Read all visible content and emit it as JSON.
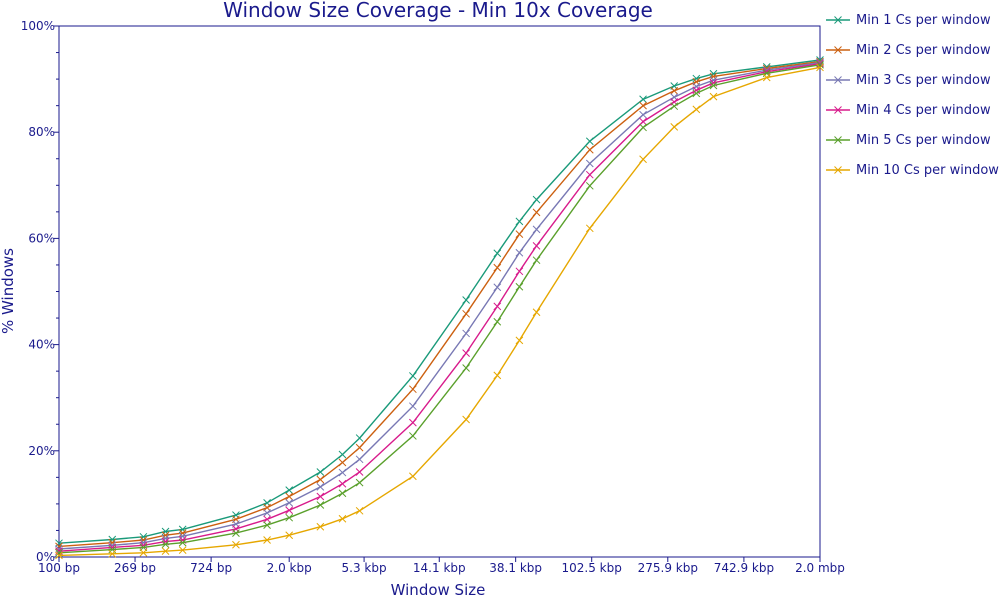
{
  "chart_data": {
    "type": "line",
    "title": "Window Size Coverage - Min 10x Coverage",
    "xlabel": "Window Size",
    "ylabel": "% Windows",
    "x_scale": "log",
    "x_ticks": [
      {
        "value": 100,
        "label": "100 bp"
      },
      {
        "value": 269,
        "label": "269 bp"
      },
      {
        "value": 724,
        "label": "724 bp"
      },
      {
        "value": 2000,
        "label": "2.0 kbp"
      },
      {
        "value": 5300,
        "label": "5.3 kbp"
      },
      {
        "value": 14100,
        "label": "14.1 kbp"
      },
      {
        "value": 38100,
        "label": "38.1 kbp"
      },
      {
        "value": 102500,
        "label": "102.5 kbp"
      },
      {
        "value": 275900,
        "label": "275.9 kbp"
      },
      {
        "value": 742900,
        "label": "742.9 kbp"
      },
      {
        "value": 2000000,
        "label": "2.0 mbp"
      }
    ],
    "y_ticks": [
      {
        "value": 0,
        "label": "0%"
      },
      {
        "value": 20,
        "label": "20%"
      },
      {
        "value": 40,
        "label": "40%"
      },
      {
        "value": 60,
        "label": "60%"
      },
      {
        "value": 80,
        "label": "80%"
      },
      {
        "value": 100,
        "label": "100%"
      }
    ],
    "ylim": [
      0,
      100
    ],
    "xlim": [
      100,
      2000000
    ],
    "grid": false,
    "legend_position": "right",
    "x": [
      100,
      200,
      300,
      400,
      500,
      1000,
      1500,
      2000,
      3000,
      4000,
      5000,
      10000,
      20000,
      30000,
      40000,
      50000,
      100000,
      200000,
      300000,
      400000,
      500000,
      1000000,
      2000000
    ],
    "series": [
      {
        "name": "Min 1 Cs per window",
        "color": "#1a9a7a",
        "values": [
          2.6,
          3.3,
          3.8,
          4.8,
          5.2,
          7.9,
          10.2,
          12.6,
          16.0,
          19.3,
          22.4,
          34.1,
          48.4,
          57.2,
          63.2,
          67.3,
          78.3,
          86.2,
          88.7,
          90.1,
          91.0,
          92.3,
          93.6
        ]
      },
      {
        "name": "Min 2 Cs per window",
        "color": "#cc6010",
        "values": [
          2.0,
          2.7,
          3.2,
          4.1,
          4.5,
          7.1,
          9.3,
          11.4,
          14.6,
          17.8,
          20.6,
          31.6,
          45.8,
          54.5,
          60.8,
          64.9,
          76.7,
          85.0,
          87.8,
          89.5,
          90.5,
          92.0,
          93.3
        ]
      },
      {
        "name": "Min 3 Cs per window",
        "color": "#7878b4",
        "values": [
          1.5,
          2.2,
          2.7,
          3.5,
          3.9,
          6.2,
          8.3,
          10.2,
          13.2,
          15.9,
          18.4,
          28.4,
          42.1,
          50.8,
          57.3,
          61.7,
          74.1,
          83.3,
          86.6,
          88.6,
          89.8,
          91.7,
          93.1
        ]
      },
      {
        "name": "Min 4 Cs per window",
        "color": "#d81b8c",
        "values": [
          1.1,
          1.8,
          2.2,
          2.9,
          3.2,
          5.3,
          7.1,
          8.8,
          11.4,
          13.8,
          16.0,
          25.3,
          38.4,
          47.2,
          53.8,
          58.6,
          72.0,
          82.0,
          85.7,
          87.9,
          89.3,
          91.4,
          92.9
        ]
      },
      {
        "name": "Min 5 Cs per window",
        "color": "#5aa02c",
        "values": [
          0.8,
          1.4,
          1.8,
          2.4,
          2.7,
          4.5,
          6.0,
          7.4,
          9.8,
          12.0,
          14.0,
          22.8,
          35.6,
          44.3,
          50.9,
          55.9,
          69.9,
          80.9,
          84.9,
          87.3,
          88.8,
          91.1,
          92.7
        ]
      },
      {
        "name": "Min 10 Cs per window",
        "color": "#e6a700",
        "values": [
          0.3,
          0.6,
          0.8,
          1.1,
          1.3,
          2.3,
          3.2,
          4.1,
          5.7,
          7.2,
          8.7,
          15.2,
          25.9,
          34.2,
          40.8,
          46.1,
          61.9,
          74.9,
          81.0,
          84.3,
          86.7,
          90.3,
          92.2
        ]
      }
    ]
  }
}
